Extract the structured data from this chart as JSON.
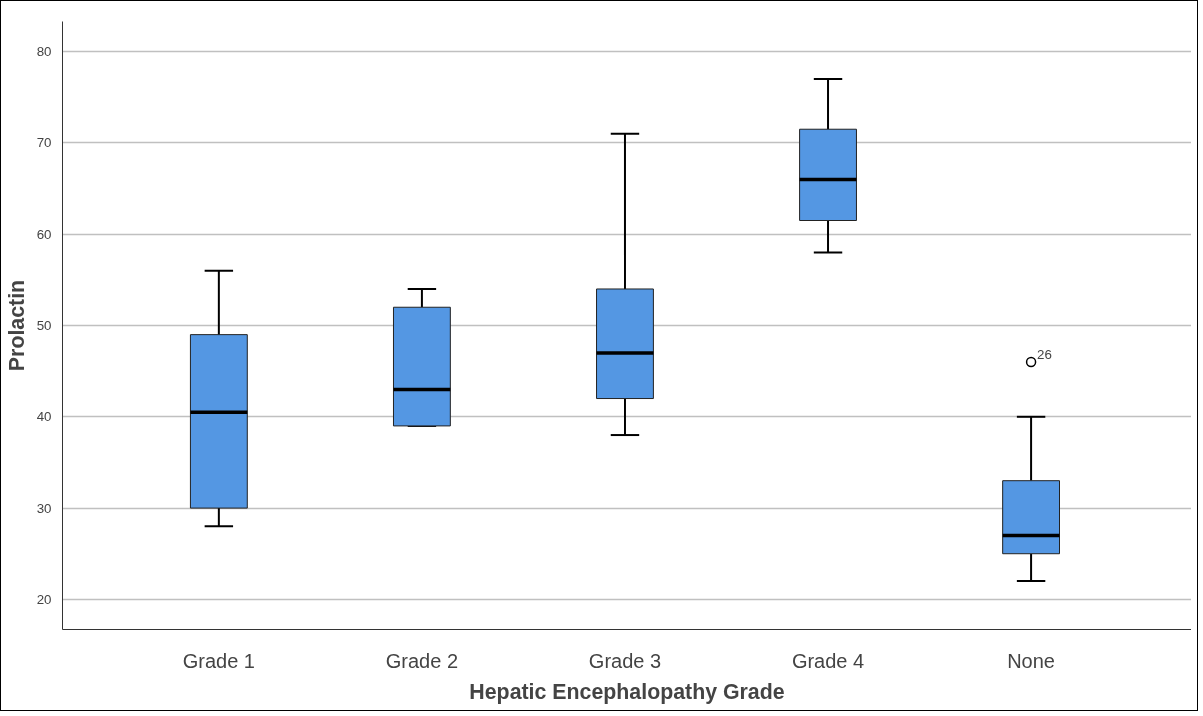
{
  "chart_data": {
    "type": "box",
    "xlabel": "Hepatic Encephalopathy Grade",
    "ylabel": "Prolactin",
    "categories": [
      "Grade 1",
      "Grade 2",
      "Grade 3",
      "Grade 4",
      "None"
    ],
    "series": [
      {
        "color": "#5497e3",
        "boxes": [
          {
            "low": 28,
            "q1": 30,
            "median": 40.5,
            "q3": 49,
            "high": 56
          },
          {
            "low": 39,
            "q1": 39,
            "median": 43,
            "q3": 52,
            "high": 54
          },
          {
            "low": 38,
            "q1": 42,
            "median": 47,
            "q3": 54,
            "high": 71
          },
          {
            "low": 58,
            "q1": 61.5,
            "median": 66,
            "q3": 71.5,
            "high": 77
          },
          {
            "low": 22,
            "q1": 25,
            "median": 27,
            "q3": 33,
            "high": 40,
            "outliers": [
              46
            ]
          }
        ]
      }
    ],
    "annotations": [
      "26"
    ],
    "ylim": [
      16.7,
      83.3
    ],
    "yticks": [
      20,
      30,
      40,
      50,
      60,
      70,
      80
    ],
    "grid": "y"
  }
}
